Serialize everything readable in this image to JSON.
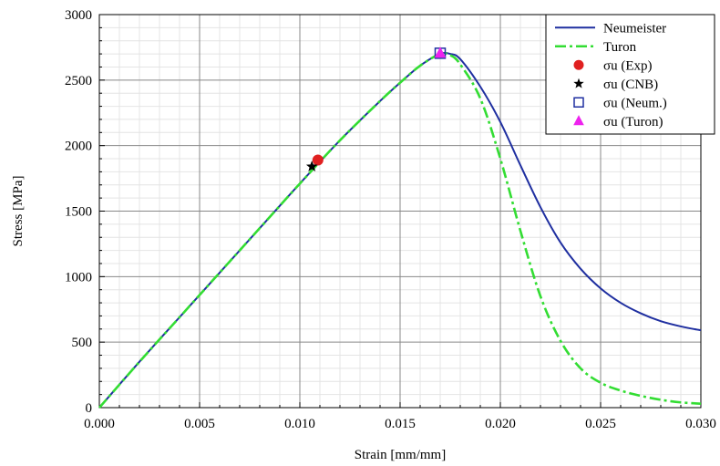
{
  "chart_data": {
    "type": "line",
    "xlabel": "Strain  [mm/mm]",
    "ylabel": "Stress  [MPa]",
    "xlim": [
      0,
      0.03
    ],
    "ylim": [
      0,
      3000
    ],
    "x_ticks": [
      0,
      0.005,
      0.01,
      0.015,
      0.02,
      0.025,
      0.03
    ],
    "x_tick_labels": [
      "0.000",
      "0.005",
      "0.010",
      "0.015",
      "0.020",
      "0.025",
      "0.030"
    ],
    "y_ticks": [
      0,
      500,
      1000,
      1500,
      2000,
      2500,
      3000
    ],
    "y_tick_labels": [
      "0",
      "500",
      "1000",
      "1500",
      "2000",
      "2500",
      "3000"
    ],
    "grid": true,
    "minor_grid": true,
    "legend_position": "top-right",
    "series": [
      {
        "name": "Neumeister",
        "color": "#1f2fa0",
        "style": "solid",
        "x": [
          0,
          0.002,
          0.004,
          0.006,
          0.008,
          0.01,
          0.012,
          0.014,
          0.015,
          0.016,
          0.017,
          0.0175,
          0.018,
          0.019,
          0.02,
          0.021,
          0.022,
          0.023,
          0.024,
          0.025,
          0.026,
          0.027,
          0.028,
          0.029,
          0.03
        ],
        "y": [
          0,
          350,
          690,
          1030,
          1370,
          1710,
          2040,
          2340,
          2480,
          2610,
          2700,
          2700,
          2660,
          2450,
          2180,
          1850,
          1530,
          1260,
          1060,
          910,
          800,
          720,
          660,
          620,
          590
        ]
      },
      {
        "name": "Turon",
        "color": "#33dd33",
        "style": "dashdot",
        "x": [
          0,
          0.002,
          0.004,
          0.006,
          0.008,
          0.01,
          0.012,
          0.014,
          0.015,
          0.016,
          0.017,
          0.0175,
          0.018,
          0.019,
          0.02,
          0.021,
          0.022,
          0.023,
          0.024,
          0.025,
          0.026,
          0.027,
          0.028,
          0.029,
          0.03
        ],
        "y": [
          0,
          350,
          690,
          1030,
          1370,
          1710,
          2040,
          2340,
          2480,
          2610,
          2700,
          2690,
          2620,
          2360,
          1900,
          1350,
          850,
          510,
          300,
          190,
          130,
          90,
          60,
          40,
          30
        ]
      }
    ],
    "markers": [
      {
        "name": "σu (Exp)",
        "shape": "circle",
        "color": "#e02020",
        "x": 0.0109,
        "y": 1890
      },
      {
        "name": "σu (CNB)",
        "shape": "star",
        "color": "#000000",
        "x": 0.0106,
        "y": 1840
      },
      {
        "name": "σu (Neum.)",
        "shape": "square",
        "color": "#1f2fa0",
        "x": 0.017,
        "y": 2705
      },
      {
        "name": "σu (Turon)",
        "shape": "triangle",
        "color": "#ee22ee",
        "x": 0.017,
        "y": 2705
      }
    ]
  }
}
